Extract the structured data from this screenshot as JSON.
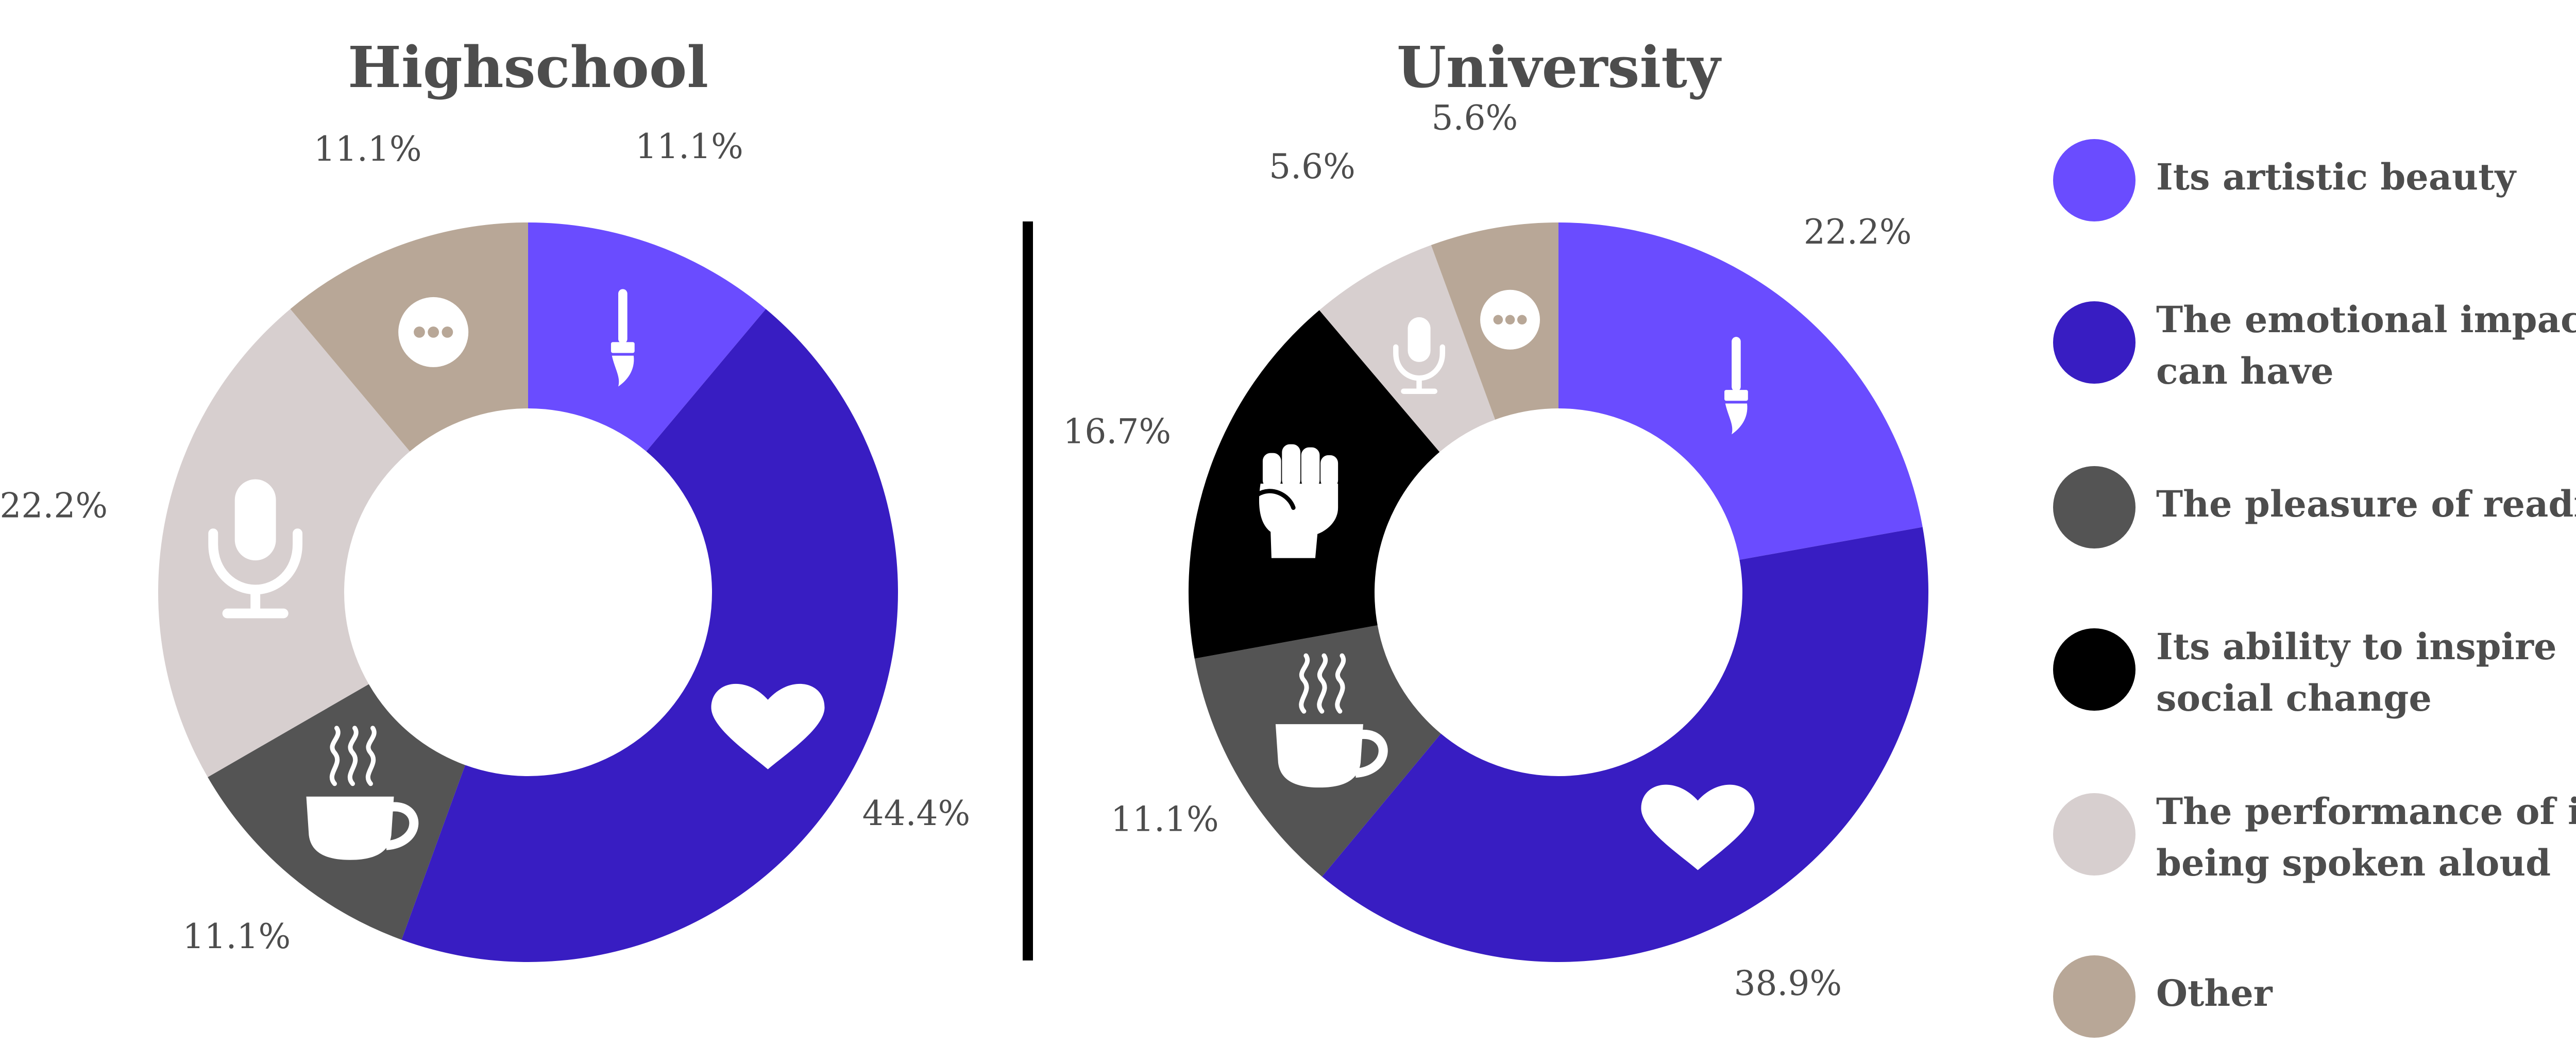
{
  "chart_data": [
    {
      "type": "pie",
      "title": "Highschool",
      "categories": [
        "Its artistic beauty",
        "The emotional impact it can have",
        "The pleasure of reading it",
        "The performance of it being spoken aloud",
        "Other"
      ],
      "values": [
        11.1,
        44.4,
        11.1,
        22.2,
        11.1
      ],
      "labels": [
        "11.1%",
        "44.4%",
        "11.1%",
        "22.2%",
        "11.1%"
      ],
      "colors": [
        "#6a4cff",
        "#381dc2",
        "#545454",
        "#d7cfcf",
        "#b8a797"
      ],
      "icons": [
        "paintbrush-icon",
        "heart-icon",
        "coffee-cup-icon",
        "microphone-icon",
        "ellipsis-icon"
      ]
    },
    {
      "type": "pie",
      "title": "University",
      "categories": [
        "Its artistic beauty",
        "The emotional impact it can have",
        "The pleasure of reading it",
        "Its ability to inspire social change",
        "The performance of it being spoken aloud",
        "Other"
      ],
      "values": [
        22.2,
        38.9,
        11.1,
        16.7,
        5.6,
        5.6
      ],
      "labels": [
        "22.2%",
        "38.9%",
        "11.1%",
        "16.7%",
        "5.6%",
        "5.6%"
      ],
      "colors": [
        "#6a4cff",
        "#381dc2",
        "#545454",
        "#000000",
        "#d7cfcf",
        "#b8a797"
      ],
      "icons": [
        "paintbrush-icon",
        "heart-icon",
        "coffee-cup-icon",
        "raised-fist-icon",
        "microphone-icon",
        "ellipsis-icon"
      ]
    }
  ],
  "legend": {
    "placement": "right",
    "items": [
      {
        "line1": "Its artistic beauty",
        "line2": "",
        "color": "#6a4cff"
      },
      {
        "line1": "The emotional impact it",
        "line2": "can have",
        "color": "#381dc2"
      },
      {
        "line1": "The pleasure of reading it",
        "line2": "",
        "color": "#545454"
      },
      {
        "line1": "Its ability to inspire",
        "line2": "social change",
        "color": "#000000"
      },
      {
        "line1": "The performance of it",
        "line2": "being spoken aloud",
        "color": "#d7cfcf"
      },
      {
        "line1": "Other",
        "line2": "",
        "color": "#b8a797"
      }
    ]
  }
}
